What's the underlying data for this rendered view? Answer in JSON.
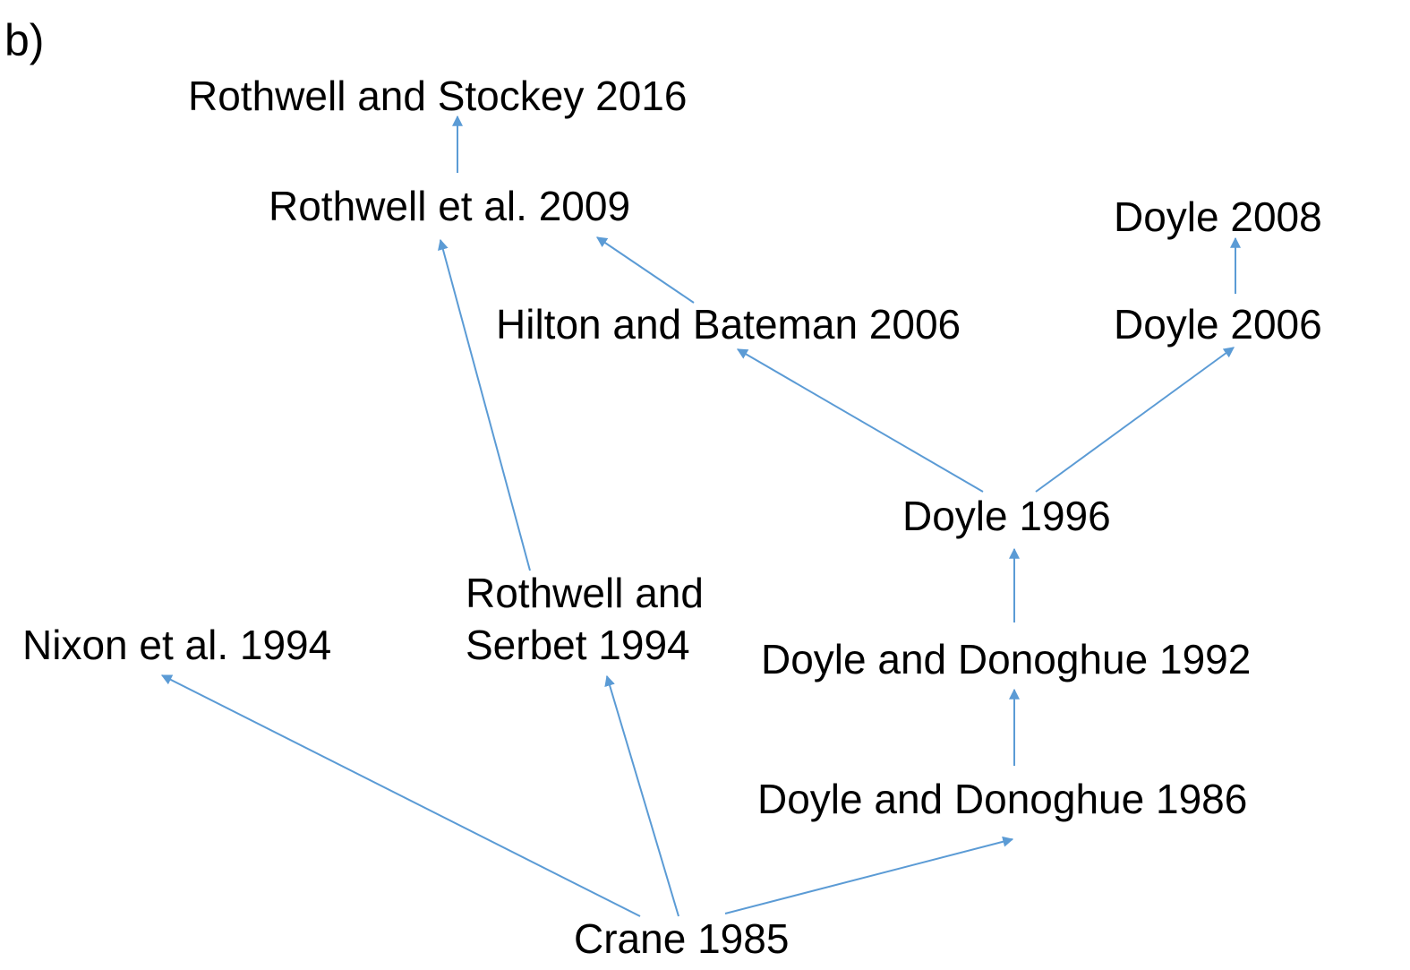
{
  "panel_label": "b)",
  "nodes": [
    {
      "label": "Rothwell and Stockey 2016"
    },
    {
      "label": "Rothwell et al. 2009"
    },
    {
      "label": "Doyle 2008"
    },
    {
      "label": "Hilton and Bateman 2006"
    },
    {
      "label": "Doyle 2006"
    },
    {
      "label": "Doyle 1996"
    },
    {
      "lines": [
        "Rothwell and",
        "Serbet 1994"
      ]
    },
    {
      "label": "Nixon et al. 1994"
    },
    {
      "label": "Doyle and Donoghue 1992"
    },
    {
      "label": "Doyle and Donoghue 1986"
    },
    {
      "label": "Crane 1985"
    }
  ]
}
